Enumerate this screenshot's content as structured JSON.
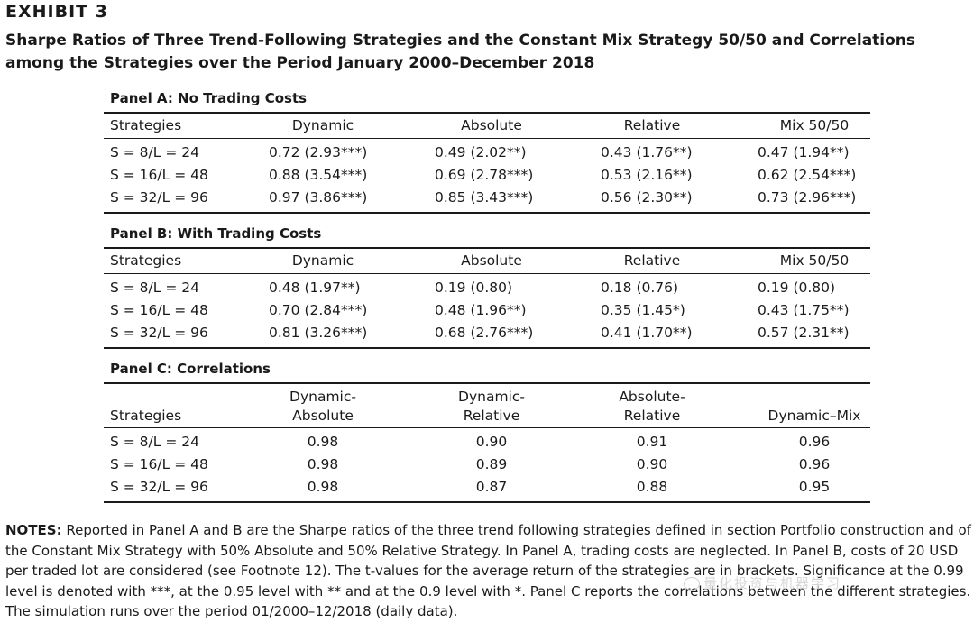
{
  "exhibit": "EXHIBIT 3",
  "title": "Sharpe Ratios of Three Trend-Following Strategies and the Constant Mix Strategy 50/50 and Correlations among the Strategies over the Period January 2000–December 2018",
  "panel_a": {
    "title": "Panel A: No Trading Costs",
    "headers": [
      "Strategies",
      "Dynamic",
      "Absolute",
      "Relative",
      "Mix 50/50"
    ],
    "rows": [
      [
        "S = 8/L = 24",
        "0.72 (2.93***)",
        "0.49 (2.02**)",
        "0.43 (1.76**)",
        "0.47 (1.94**)"
      ],
      [
        "S = 16/L = 48",
        "0.88 (3.54***)",
        "0.69 (2.78***)",
        "0.53 (2.16**)",
        "0.62 (2.54***)"
      ],
      [
        "S = 32/L = 96",
        "0.97 (3.86***)",
        "0.85 (3.43***)",
        "0.56 (2.30**)",
        "0.73 (2.96***)"
      ]
    ]
  },
  "panel_b": {
    "title": "Panel B: With Trading Costs",
    "headers": [
      "Strategies",
      "Dynamic",
      "Absolute",
      "Relative",
      "Mix 50/50"
    ],
    "rows": [
      [
        "S = 8/L = 24",
        "0.48 (1.97**)",
        "0.19 (0.80)",
        "0.18 (0.76)",
        "0.19 (0.80)"
      ],
      [
        "S = 16/L = 48",
        "0.70 (2.84***)",
        "0.48 (1.96**)",
        "0.35 (1.45*)",
        "0.43 (1.75**)"
      ],
      [
        "S = 32/L = 96",
        "0.81 (3.26***)",
        "0.68 (2.76***)",
        "0.41 (1.70**)",
        "0.57 (2.31**)"
      ]
    ]
  },
  "panel_c": {
    "title": "Panel C: Correlations",
    "headers": {
      "strategies": "Strategies",
      "h1_line1": "Dynamic-",
      "h1_line2": "Absolute",
      "h2_line1": "Dynamic-",
      "h2_line2": "Relative",
      "h3_line1": "Absolute-",
      "h3_line2": "Relative",
      "h4": "Dynamic–Mix"
    },
    "rows": [
      [
        "S = 8/L = 24",
        "0.98",
        "0.90",
        "0.91",
        "0.96"
      ],
      [
        "S = 16/L = 48",
        "0.98",
        "0.89",
        "0.90",
        "0.96"
      ],
      [
        "S = 32/L = 96",
        "0.98",
        "0.87",
        "0.88",
        "0.95"
      ]
    ]
  },
  "notes": {
    "lead": "NOTES:",
    "text": " Reported in Panel A and B are the Sharpe ratios of the three trend following strategies defined in section Portfolio construction and of the Constant Mix Strategy with 50% Absolute and 50% Relative Strategy. In Panel A, trading costs are neglected. In Panel B, costs of 20 USD per traded lot are considered (see Footnote 12). The t-values for the average return of the strategies are in brackets. Significance at the 0.99 level is denoted with ***, at the 0.95 level with ** and at the 0.9 level with *. Panel C reports the correlations between the different strategies. The simulation runs over the period 01/2000–12/2018 (daily data)."
  },
  "watermark": "量化投资与机器学习"
}
